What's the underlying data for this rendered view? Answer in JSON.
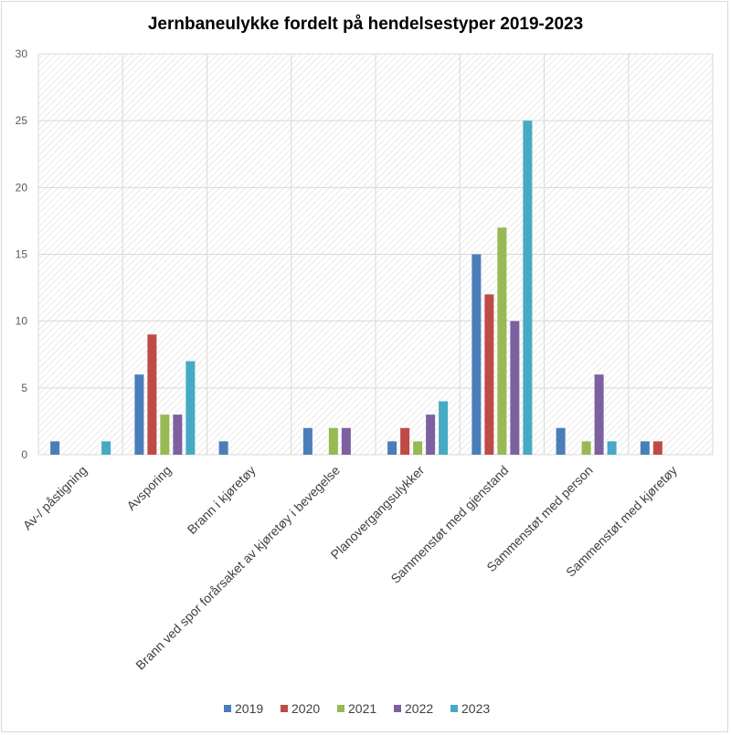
{
  "chart_data": {
    "type": "bar",
    "title": "Jernbaneulykke fordelt på hendelsestyper 2019-2023",
    "xlabel": "",
    "ylabel": "",
    "ylim": [
      0,
      30
    ],
    "yticks": [
      "0",
      "5",
      "10",
      "15",
      "20",
      "25",
      "30"
    ],
    "grid": true,
    "legend": "bottom",
    "categories": [
      "Av-/ påstigning",
      "Avsporing",
      "Brann i kjøretøy",
      "Brann ved spor forårsaket av kjøretøy i bevegelse",
      "Planovergangsulykker",
      "Sammenstøt med gjenstand",
      "Sammenstøt med person",
      "Sammenstøt med kjøretøy"
    ],
    "series": [
      {
        "name": "2019",
        "color": "#4a7ebb",
        "values": [
          1,
          6,
          1,
          2,
          1,
          15,
          2,
          1
        ]
      },
      {
        "name": "2020",
        "color": "#be4b48",
        "values": [
          0,
          9,
          0,
          0,
          2,
          12,
          0,
          1
        ]
      },
      {
        "name": "2021",
        "color": "#98b954",
        "values": [
          0,
          3,
          0,
          2,
          1,
          17,
          1,
          0
        ]
      },
      {
        "name": "2022",
        "color": "#7d60a0",
        "values": [
          0,
          3,
          0,
          2,
          3,
          10,
          6,
          0
        ]
      },
      {
        "name": "2023",
        "color": "#46aac5",
        "values": [
          1,
          7,
          0,
          0,
          4,
          25,
          1,
          0
        ]
      }
    ]
  }
}
